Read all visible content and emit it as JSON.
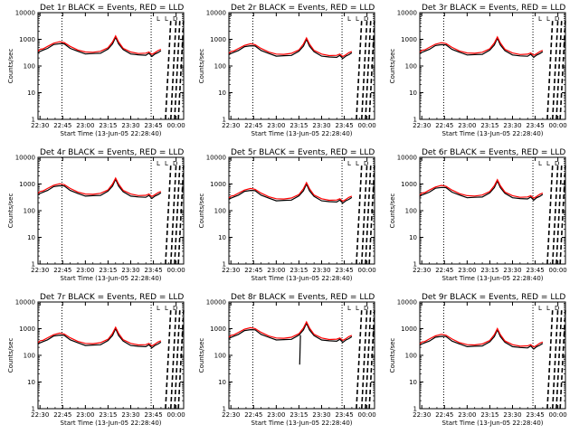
{
  "chart_data": [
    {
      "type": "line",
      "title": "Det 1r BLACK = Events, RED = LLD",
      "xlabel": "Start Time (13-Jun-05 22:28:40)",
      "ylabel": "Counts/sec",
      "x_ticks": [
        "22:30",
        "22:45",
        "23:00",
        "23:15",
        "23:30",
        "23:45",
        "00:00"
      ],
      "y_ticks": [
        "1",
        "10",
        "100",
        "1000",
        "10000"
      ],
      "ylim": [
        1,
        10000
      ],
      "yscale": "log",
      "series": [
        {
          "color": "#000000"
        },
        {
          "color": "#ff0000"
        }
      ],
      "legend_marks": [
        "L",
        "L",
        "D"
      ],
      "peak": 1200,
      "glitch": false
    },
    {
      "type": "line",
      "title": "Det 2r BLACK = Events, RED = LLD",
      "xlabel": "Start Time (13-Jun-05 22:28:40)",
      "ylabel": "Counts/sec",
      "x_ticks": [
        "22:30",
        "22:45",
        "23:00",
        "23:15",
        "23:30",
        "23:45",
        "00:00"
      ],
      "y_ticks": [
        "1",
        "10",
        "100",
        "1000",
        "10000"
      ],
      "ylim": [
        1,
        10000
      ],
      "yscale": "log",
      "series": [
        {
          "color": "#000000"
        },
        {
          "color": "#ff0000"
        }
      ],
      "legend_marks": [
        "L",
        "L",
        "D"
      ],
      "peak": 1000,
      "glitch": false
    },
    {
      "type": "line",
      "title": "Det 3r BLACK = Events, RED = LLD",
      "xlabel": "Start Time (13-Jun-05 22:28:40)",
      "ylabel": "Counts/sec",
      "x_ticks": [
        "22:30",
        "22:45",
        "23:00",
        "23:15",
        "23:30",
        "23:45",
        "00:00"
      ],
      "y_ticks": [
        "1",
        "10",
        "100",
        "1000",
        "10000"
      ],
      "ylim": [
        1,
        10000
      ],
      "yscale": "log",
      "series": [
        {
          "color": "#000000"
        },
        {
          "color": "#ff0000"
        }
      ],
      "legend_marks": [
        "L",
        "L",
        "D"
      ],
      "peak": 1100,
      "glitch": false
    },
    {
      "type": "line",
      "title": "Det 4r BLACK = Events, RED = LLD",
      "xlabel": "Start Time (13-Jun-05 22:28:40)",
      "ylabel": "Counts/sec",
      "x_ticks": [
        "22:30",
        "22:45",
        "23:00",
        "23:15",
        "23:30",
        "23:45",
        "00:00"
      ],
      "y_ticks": [
        "1",
        "10",
        "100",
        "1000",
        "10000"
      ],
      "ylim": [
        1,
        10000
      ],
      "yscale": "log",
      "series": [
        {
          "color": "#000000"
        },
        {
          "color": "#ff0000"
        }
      ],
      "legend_marks": [
        "L",
        "L",
        "D"
      ],
      "peak": 1500,
      "glitch": false
    },
    {
      "type": "line",
      "title": "Det 5r BLACK = Events, RED = LLD",
      "xlabel": "Start Time (13-Jun-05 22:28:40)",
      "ylabel": "Counts/sec",
      "x_ticks": [
        "22:30",
        "22:45",
        "23:00",
        "23:15",
        "23:30",
        "23:45",
        "00:00"
      ],
      "y_ticks": [
        "1",
        "10",
        "100",
        "1000",
        "10000"
      ],
      "ylim": [
        1,
        10000
      ],
      "yscale": "log",
      "series": [
        {
          "color": "#000000"
        },
        {
          "color": "#ff0000"
        }
      ],
      "legend_marks": [
        "L",
        "L",
        "D"
      ],
      "peak": 1000,
      "glitch": false
    },
    {
      "type": "line",
      "title": "Det 6r BLACK = Events, RED = LLD",
      "xlabel": "Start Time (13-Jun-05 22:28:40)",
      "ylabel": "Counts/sec",
      "x_ticks": [
        "22:30",
        "22:45",
        "23:00",
        "23:15",
        "23:30",
        "23:45",
        "00:00"
      ],
      "y_ticks": [
        "1",
        "10",
        "100",
        "1000",
        "10000"
      ],
      "ylim": [
        1,
        10000
      ],
      "yscale": "log",
      "series": [
        {
          "color": "#000000"
        },
        {
          "color": "#ff0000"
        }
      ],
      "legend_marks": [
        "L",
        "L",
        "D"
      ],
      "peak": 1300,
      "glitch": false
    },
    {
      "type": "line",
      "title": "Det 7r BLACK = Events, RED = LLD",
      "xlabel": "Start Time (13-Jun-05 22:28:40)",
      "ylabel": "Counts/sec",
      "x_ticks": [
        "22:30",
        "22:45",
        "23:00",
        "23:15",
        "23:30",
        "23:45",
        "00:00"
      ],
      "y_ticks": [
        "1",
        "10",
        "100",
        "1000",
        "10000"
      ],
      "ylim": [
        1,
        10000
      ],
      "yscale": "log",
      "series": [
        {
          "color": "#000000"
        },
        {
          "color": "#ff0000"
        }
      ],
      "legend_marks": [
        "L",
        "L",
        "D"
      ],
      "peak": 1000,
      "glitch": false
    },
    {
      "type": "line",
      "title": "Det 8r BLACK = Events, RED = LLD",
      "xlabel": "Start Time (13-Jun-05 22:28:40)",
      "ylabel": "Counts/sec",
      "x_ticks": [
        "22:30",
        "22:45",
        "23:00",
        "23:15",
        "23:30",
        "23:45",
        "00:00"
      ],
      "y_ticks": [
        "1",
        "10",
        "100",
        "1000",
        "10000"
      ],
      "ylim": [
        1,
        10000
      ],
      "yscale": "log",
      "series": [
        {
          "color": "#000000"
        },
        {
          "color": "#ff0000"
        }
      ],
      "legend_marks": [
        "L",
        "L",
        "D"
      ],
      "peak": 1600,
      "glitch": true
    },
    {
      "type": "line",
      "title": "Det 9r BLACK = Events, RED = LLD",
      "xlabel": "Start Time (13-Jun-05 22:28:40)",
      "ylabel": "Counts/sec",
      "x_ticks": [
        "22:30",
        "22:45",
        "23:00",
        "23:15",
        "23:30",
        "23:45",
        "00:00"
      ],
      "y_ticks": [
        "1",
        "10",
        "100",
        "1000",
        "10000"
      ],
      "ylim": [
        1,
        10000
      ],
      "yscale": "log",
      "series": [
        {
          "color": "#000000"
        },
        {
          "color": "#ff0000"
        }
      ],
      "legend_marks": [
        "L",
        "L",
        "D"
      ],
      "peak": 900,
      "glitch": false
    }
  ]
}
